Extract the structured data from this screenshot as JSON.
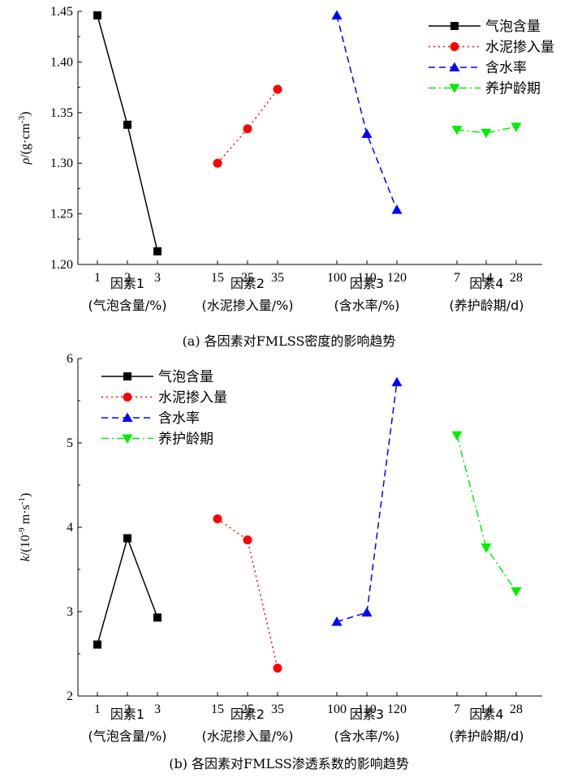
{
  "chart_data": [
    {
      "type": "line",
      "ylabel": {
        "sym": "ρ",
        "text": "/(g·cm",
        "sup": "-3",
        "close": ")"
      },
      "ylim": [
        1.2,
        1.45
      ],
      "yticks": [
        "1.20",
        "1.25",
        "1.30",
        "1.35",
        "1.40",
        "1.45"
      ],
      "caption": "(a) 各因素对FMLSS密度的影响趋势",
      "groups": [
        {
          "series": "气泡含量",
          "x": [
            "1",
            "2",
            "3"
          ],
          "values": [
            1.446,
            1.338,
            1.213
          ],
          "factor": "因素1",
          "unit": "(气泡含量/%)"
        },
        {
          "series": "水泥掺入量",
          "x": [
            "15",
            "25",
            "35"
          ],
          "values": [
            1.3,
            1.334,
            1.373
          ],
          "factor": "因素2",
          "unit": "(水泥掺入量/%)"
        },
        {
          "series": "含水率",
          "x": [
            "100",
            "110",
            "120"
          ],
          "values": [
            1.446,
            1.329,
            1.254
          ],
          "factor": "因素3",
          "unit": "(含水率/%)"
        },
        {
          "series": "养护龄期",
          "x": [
            "7",
            "14",
            "28"
          ],
          "values": [
            1.333,
            1.33,
            1.336
          ],
          "factor": "因素4",
          "unit": "(养护龄期/d)"
        }
      ],
      "legend": [
        "气泡含量",
        "水泥掺入量",
        "含水率",
        "养护龄期"
      ],
      "legend_position": "top-right"
    },
    {
      "type": "line",
      "ylabel": {
        "sym": "k",
        "text": "/(10",
        "sup": "-9",
        "rest": " m·s",
        "sup2": "-1",
        "close": ")"
      },
      "ylim": [
        2,
        6
      ],
      "yticks": [
        "2",
        "3",
        "4",
        "5",
        "6"
      ],
      "caption": "(b) 各因素对FMLSS渗透系数的影响趋势",
      "groups": [
        {
          "series": "气泡含量",
          "x": [
            "1",
            "2",
            "3"
          ],
          "values": [
            2.61,
            3.87,
            2.93
          ],
          "factor": "因素1",
          "unit": "(气泡含量/%)"
        },
        {
          "series": "水泥掺入量",
          "x": [
            "15",
            "25",
            "35"
          ],
          "values": [
            4.1,
            3.85,
            2.33
          ],
          "factor": "因素2",
          "unit": "(水泥掺入量/%)"
        },
        {
          "series": "含水率",
          "x": [
            "100",
            "110",
            "120"
          ],
          "values": [
            2.88,
            2.99,
            5.72
          ],
          "factor": "因素3",
          "unit": "(含水率/%)"
        },
        {
          "series": "养护龄期",
          "x": [
            "7",
            "14",
            "28"
          ],
          "values": [
            5.09,
            3.76,
            3.24
          ],
          "factor": "因素4",
          "unit": "(养护龄期/d)"
        }
      ],
      "legend": [
        "气泡含量",
        "水泥掺入量",
        "含水率",
        "养护龄期"
      ],
      "legend_position": "top-left"
    }
  ],
  "styles": [
    {
      "color": "#000000",
      "dash": "",
      "marker": "square"
    },
    {
      "color": "#ff0000",
      "dash": "2,4",
      "marker": "circle"
    },
    {
      "color": "#0000ff",
      "dash": "8,5",
      "marker": "triangle-up"
    },
    {
      "color": "#00ee00",
      "dash": "9,4,2,4",
      "marker": "triangle-down"
    }
  ]
}
